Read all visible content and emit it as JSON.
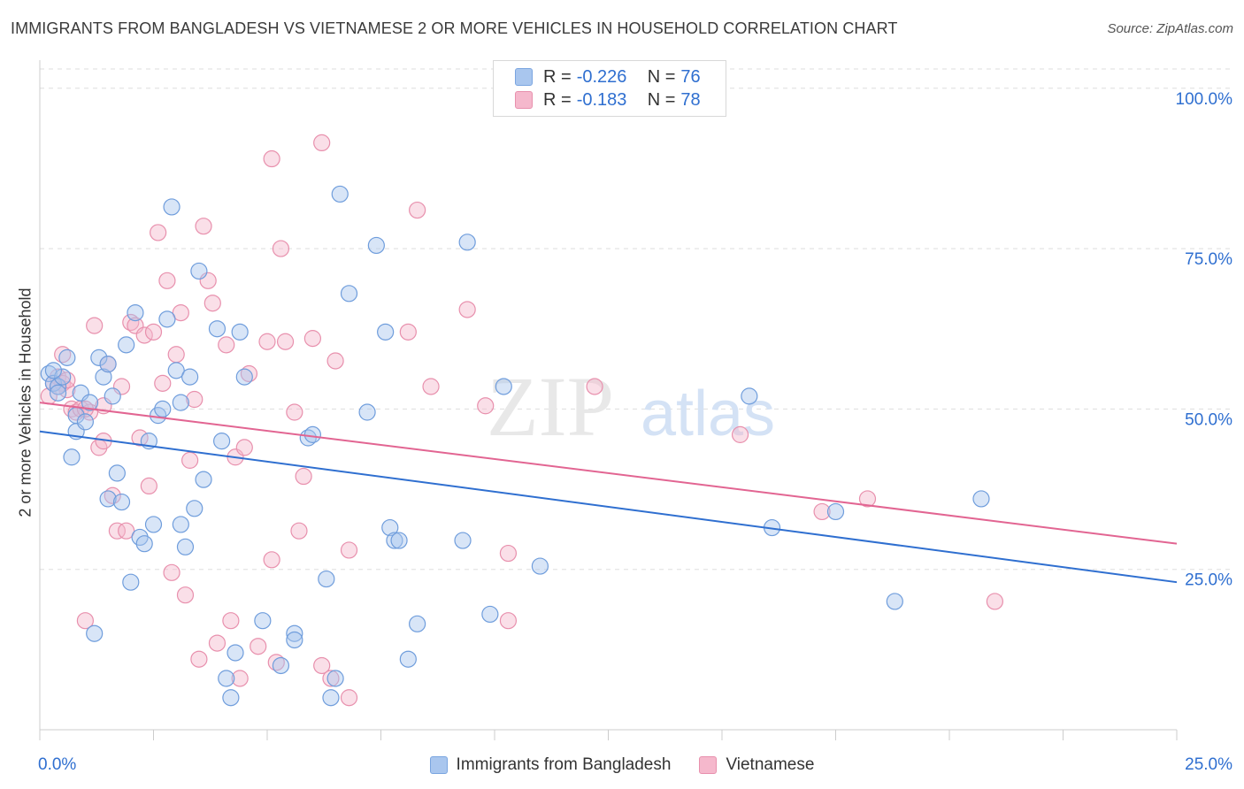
{
  "title": "IMMIGRANTS FROM BANGLADESH VS VIETNAMESE 2 OR MORE VEHICLES IN HOUSEHOLD CORRELATION CHART",
  "source": "Source: ZipAtlas.com",
  "watermark": {
    "zip": "ZIP",
    "atlas": "atlas"
  },
  "colors": {
    "blue": "#2f6fd0",
    "blue_fill": "#a9c6ee",
    "pink": "#e26592",
    "pink_fill": "#f5b8cc",
    "axis_text": "#2f6fd0"
  },
  "legend": {
    "rows": [
      {
        "r_label": "R = ",
        "r_value": "-0.226",
        "n_label": "N = ",
        "n_value": "76"
      },
      {
        "r_label": "R = ",
        "r_value": "-0.183",
        "n_label": "N = ",
        "n_value": "78"
      }
    ]
  },
  "bottom_legend": {
    "series1": "Immigrants from Bangladesh",
    "series2": "Vietnamese"
  },
  "chart_data": {
    "type": "scatter",
    "title": "IMMIGRANTS FROM BANGLADESH VS VIETNAMESE 2 OR MORE VEHICLES IN HOUSEHOLD CORRELATION CHART",
    "xlabel": "",
    "ylabel": "2 or more Vehicles in Household",
    "xlim": [
      0,
      25
    ],
    "ylim": [
      0,
      103
    ],
    "x_tick_labels": [
      "0.0%",
      "25.0%"
    ],
    "y_tick_labels": [
      "25.0%",
      "50.0%",
      "75.0%",
      "100.0%"
    ],
    "y_ticks": [
      25,
      50,
      75,
      100
    ],
    "grid": true,
    "legend_position": "top-center",
    "series": [
      {
        "name": "Immigrants from Bangladesh",
        "color": "#2f6fd0",
        "trend": {
          "x": [
            0,
            25
          ],
          "y": [
            46.5,
            23.0
          ]
        },
        "points": [
          [
            0.2,
            55.5
          ],
          [
            0.3,
            54.0
          ],
          [
            0.4,
            53.5
          ],
          [
            0.5,
            55.0
          ],
          [
            0.4,
            52.5
          ],
          [
            0.6,
            58.0
          ],
          [
            0.7,
            42.5
          ],
          [
            0.8,
            49.0
          ],
          [
            0.8,
            46.5
          ],
          [
            0.9,
            52.5
          ],
          [
            1.0,
            48.0
          ],
          [
            1.1,
            51.0
          ],
          [
            1.2,
            15.0
          ],
          [
            1.3,
            58.0
          ],
          [
            1.4,
            55.0
          ],
          [
            1.5,
            57.0
          ],
          [
            1.5,
            36.0
          ],
          [
            1.6,
            52.0
          ],
          [
            1.7,
            40.0
          ],
          [
            1.8,
            35.5
          ],
          [
            1.9,
            60.0
          ],
          [
            2.0,
            23.0
          ],
          [
            2.1,
            65.0
          ],
          [
            2.2,
            30.0
          ],
          [
            2.3,
            29.0
          ],
          [
            2.4,
            45.0
          ],
          [
            2.5,
            32.0
          ],
          [
            2.6,
            49.0
          ],
          [
            2.7,
            50.0
          ],
          [
            2.8,
            64.0
          ],
          [
            2.9,
            81.5
          ],
          [
            3.0,
            56.0
          ],
          [
            3.1,
            51.0
          ],
          [
            3.1,
            32.0
          ],
          [
            3.2,
            28.5
          ],
          [
            3.3,
            55.0
          ],
          [
            3.4,
            34.5
          ],
          [
            3.5,
            71.5
          ],
          [
            3.6,
            39.0
          ],
          [
            3.9,
            62.5
          ],
          [
            4.0,
            45.0
          ],
          [
            4.1,
            8.0
          ],
          [
            4.2,
            5.0
          ],
          [
            4.3,
            12.0
          ],
          [
            4.4,
            62.0
          ],
          [
            4.5,
            55.0
          ],
          [
            4.9,
            17.0
          ],
          [
            5.3,
            10.0
          ],
          [
            5.6,
            15.0
          ],
          [
            5.6,
            14.0
          ],
          [
            5.9,
            45.5
          ],
          [
            6.0,
            46.0
          ],
          [
            6.3,
            23.5
          ],
          [
            6.4,
            5.0
          ],
          [
            6.5,
            8.0
          ],
          [
            6.6,
            83.5
          ],
          [
            6.8,
            68.0
          ],
          [
            7.4,
            75.5
          ],
          [
            7.2,
            49.5
          ],
          [
            7.6,
            62.0
          ],
          [
            7.7,
            31.5
          ],
          [
            7.8,
            29.5
          ],
          [
            7.9,
            29.5
          ],
          [
            8.1,
            11.0
          ],
          [
            8.3,
            16.5
          ],
          [
            9.3,
            29.5
          ],
          [
            9.4,
            76.0
          ],
          [
            9.9,
            18.0
          ],
          [
            10.2,
            53.5
          ],
          [
            11.0,
            25.5
          ],
          [
            15.6,
            52.0
          ],
          [
            16.1,
            31.5
          ],
          [
            17.5,
            34.0
          ],
          [
            18.8,
            20.0
          ],
          [
            20.7,
            36.0
          ],
          [
            0.3,
            56.0
          ]
        ]
      },
      {
        "name": "Vietnamese",
        "color": "#e26592",
        "trend": {
          "x": [
            0,
            25
          ],
          "y": [
            51.0,
            29.0
          ]
        },
        "points": [
          [
            0.2,
            52.0
          ],
          [
            0.3,
            54.0
          ],
          [
            0.4,
            55.0
          ],
          [
            0.5,
            58.5
          ],
          [
            0.5,
            54.0
          ],
          [
            0.6,
            53.0
          ],
          [
            0.7,
            50.0
          ],
          [
            0.8,
            49.5
          ],
          [
            0.9,
            50.0
          ],
          [
            1.0,
            17.0
          ],
          [
            1.1,
            49.5
          ],
          [
            1.2,
            63.0
          ],
          [
            1.3,
            44.0
          ],
          [
            1.4,
            45.0
          ],
          [
            1.4,
            50.5
          ],
          [
            1.5,
            57.0
          ],
          [
            1.6,
            36.5
          ],
          [
            1.7,
            31.0
          ],
          [
            1.8,
            53.5
          ],
          [
            1.9,
            31.0
          ],
          [
            2.0,
            63.5
          ],
          [
            2.1,
            63.0
          ],
          [
            2.2,
            45.5
          ],
          [
            2.3,
            61.5
          ],
          [
            2.4,
            38.0
          ],
          [
            2.5,
            62.0
          ],
          [
            2.6,
            77.5
          ],
          [
            2.7,
            54.0
          ],
          [
            2.8,
            70.0
          ],
          [
            2.9,
            24.5
          ],
          [
            3.0,
            58.5
          ],
          [
            3.1,
            65.0
          ],
          [
            3.2,
            21.0
          ],
          [
            3.3,
            42.0
          ],
          [
            3.4,
            51.5
          ],
          [
            3.5,
            11.0
          ],
          [
            3.6,
            78.5
          ],
          [
            3.7,
            70.0
          ],
          [
            3.8,
            66.5
          ],
          [
            3.9,
            13.5
          ],
          [
            4.1,
            60.0
          ],
          [
            4.2,
            17.0
          ],
          [
            4.3,
            42.5
          ],
          [
            4.4,
            8.0
          ],
          [
            4.5,
            44.0
          ],
          [
            4.6,
            55.5
          ],
          [
            4.8,
            13.0
          ],
          [
            5.0,
            60.5
          ],
          [
            5.1,
            89.0
          ],
          [
            5.1,
            26.5
          ],
          [
            5.2,
            10.5
          ],
          [
            5.3,
            75.0
          ],
          [
            5.4,
            60.5
          ],
          [
            5.6,
            49.5
          ],
          [
            5.7,
            31.0
          ],
          [
            5.8,
            39.5
          ],
          [
            6.0,
            61.0
          ],
          [
            6.2,
            10.0
          ],
          [
            6.2,
            91.5
          ],
          [
            6.4,
            8.0
          ],
          [
            6.5,
            57.5
          ],
          [
            6.8,
            28.0
          ],
          [
            6.8,
            5.0
          ],
          [
            8.1,
            62.0
          ],
          [
            8.3,
            81.0
          ],
          [
            8.6,
            53.5
          ],
          [
            9.4,
            65.5
          ],
          [
            9.8,
            50.5
          ],
          [
            10.3,
            27.5
          ],
          [
            10.3,
            17.0
          ],
          [
            12.2,
            53.5
          ],
          [
            15.4,
            46.0
          ],
          [
            17.2,
            34.0
          ],
          [
            18.2,
            36.0
          ],
          [
            21.0,
            20.0
          ],
          [
            0.4,
            53.5
          ],
          [
            0.6,
            54.5
          ],
          [
            1.0,
            50.0
          ]
        ]
      }
    ]
  }
}
